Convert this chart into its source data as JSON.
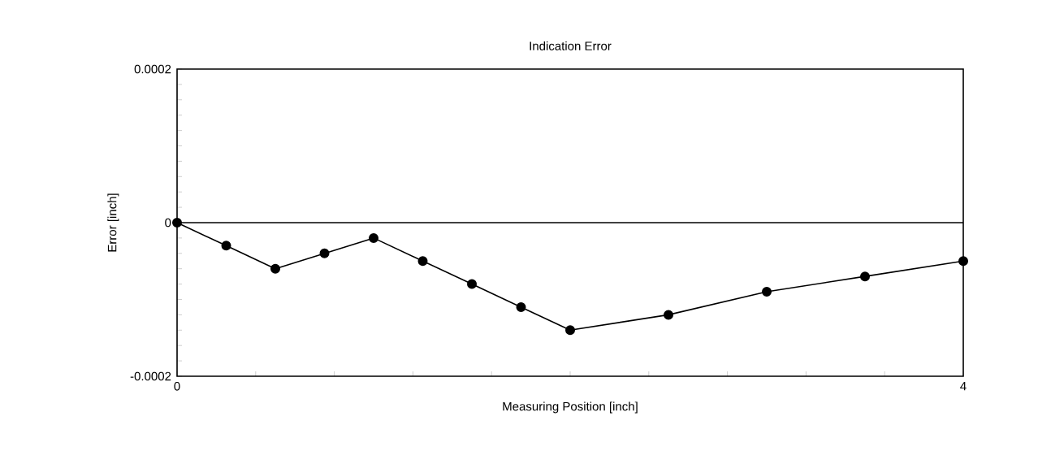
{
  "chart_data": {
    "type": "line",
    "title": "Indication Error",
    "xlabel": "Measuring Position [inch]",
    "ylabel": "Error [inch]",
    "x": [
      0,
      0.25,
      0.5,
      0.75,
      1.0,
      1.25,
      1.5,
      1.75,
      2.0,
      2.5,
      3.0,
      3.5,
      4.0
    ],
    "series": [
      {
        "color": "#000000",
        "values": [
          0,
          -3e-05,
          -6e-05,
          -4e-05,
          -2e-05,
          -5e-05,
          -8e-05,
          -0.00011,
          -0.00014,
          -0.00012,
          -9e-05,
          -7e-05,
          -5e-05
        ]
      }
    ],
    "xlim": [
      0,
      4
    ],
    "ylim": [
      -0.0002,
      0.0002
    ],
    "xticks": [
      0,
      {
        "value": 0.4,
        "label": null
      },
      {
        "value": 0.8,
        "label": null
      },
      {
        "value": 1.2,
        "label": null
      },
      {
        "value": 1.6,
        "label": null
      },
      {
        "value": 2.0,
        "label": null
      },
      {
        "value": 2.4,
        "label": null
      },
      {
        "value": 2.8,
        "label": null
      },
      {
        "value": 3.2,
        "label": null
      },
      {
        "value": 3.6,
        "label": null
      },
      4
    ],
    "yticks": [
      -0.0002,
      {
        "value": -0.00018,
        "label": null
      },
      {
        "value": -0.00016,
        "label": null
      },
      {
        "value": -0.00014,
        "label": null
      },
      {
        "value": -0.00012,
        "label": null
      },
      {
        "value": -0.0001,
        "label": null
      },
      {
        "value": -8e-05,
        "label": null
      },
      {
        "value": -6e-05,
        "label": null
      },
      {
        "value": -4e-05,
        "label": null
      },
      {
        "value": -2e-05,
        "label": null
      },
      0,
      {
        "value": 2e-05,
        "label": null
      },
      {
        "value": 4e-05,
        "label": null
      },
      {
        "value": 6e-05,
        "label": null
      },
      {
        "value": 8e-05,
        "label": null
      },
      {
        "value": 0.0001,
        "label": null
      },
      {
        "value": 0.00012,
        "label": null
      },
      {
        "value": 0.00014,
        "label": null
      },
      {
        "value": 0.00016,
        "label": null
      },
      {
        "value": 0.00018,
        "label": null
      },
      0.0002
    ],
    "ref_lines": [
      {
        "axis": "y",
        "value": 0,
        "color": "#000000"
      }
    ],
    "marker": "circle",
    "line_style": "solid",
    "grid": false
  }
}
